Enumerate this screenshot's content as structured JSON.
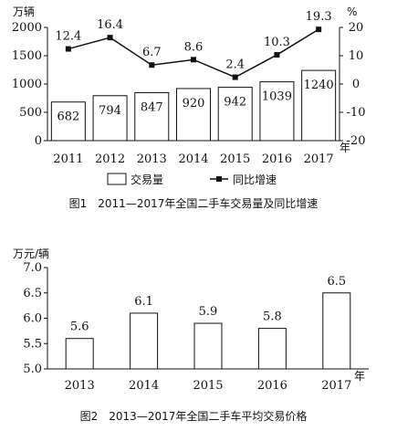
{
  "chart_data": [
    {
      "type": "bar+line",
      "title": "图1　2011—2017年全国二手车交易量及同比增速",
      "unit_left": "万辆",
      "unit_right": "%",
      "x_unit": "年",
      "categories": [
        "2011",
        "2012",
        "2013",
        "2014",
        "2015",
        "2016",
        "2017"
      ],
      "series": [
        {
          "name": "交易量",
          "kind": "bar",
          "axis": "left",
          "values": [
            682,
            794,
            847,
            920,
            942,
            1039,
            1240
          ]
        },
        {
          "name": "同比增速",
          "kind": "line",
          "axis": "right",
          "values": [
            12.4,
            16.4,
            6.7,
            8.6,
            2.4,
            10.3,
            19.3
          ]
        }
      ],
      "ylim_left": [
        0,
        2000
      ],
      "yticks_left": [
        "0",
        "500",
        "1000",
        "1500",
        "2000"
      ],
      "ylim_right": [
        -20,
        20
      ],
      "yticks_right": [
        "-20",
        "-10",
        "0",
        "10",
        "20"
      ],
      "legend_position": "bottom"
    },
    {
      "type": "bar",
      "title": "图2　2013—2017年全国二手车平均交易价格",
      "unit_left": "万元/辆",
      "x_unit": "年",
      "categories": [
        "2013",
        "2014",
        "2015",
        "2016",
        "2017"
      ],
      "values": [
        5.6,
        6.1,
        5.9,
        5.8,
        6.5
      ],
      "value_labels": [
        "5.6",
        "6.1",
        "5.9",
        "5.8",
        "6.5"
      ],
      "ylim": [
        5.0,
        7.0
      ],
      "yticks": [
        "5.0",
        "5.5",
        "6.0",
        "6.5",
        "7.0"
      ]
    }
  ]
}
